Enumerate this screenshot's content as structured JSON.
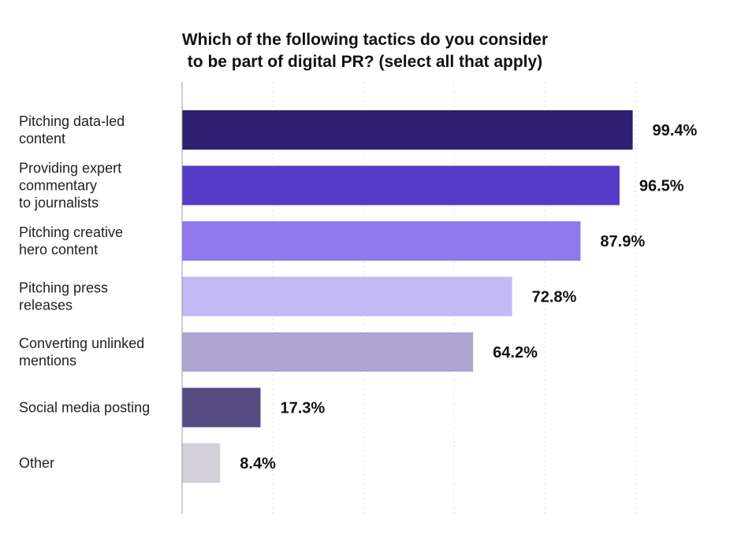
{
  "chart_data": {
    "type": "bar",
    "orientation": "horizontal",
    "title_lines": [
      "Which of the following tactics do you consider",
      "to be part of digital PR? (select all that apply)"
    ],
    "categories": [
      [
        "Pitching data-led",
        "content"
      ],
      [
        "Providing expert",
        "commentary",
        "to journalists"
      ],
      [
        "Pitching creative",
        "hero content"
      ],
      [
        "Pitching press",
        "releases"
      ],
      [
        "Converting unlinked",
        "mentions"
      ],
      [
        "Social media posting"
      ],
      [
        "Other"
      ]
    ],
    "values": [
      99.4,
      96.5,
      87.9,
      72.8,
      64.2,
      17.3,
      8.4
    ],
    "value_labels": [
      "99.4%",
      "96.5%",
      "87.9%",
      "72.8%",
      "64.2%",
      "17.3%",
      "8.4%"
    ],
    "colors": [
      "#2e1f72",
      "#563bc8",
      "#8f79ec",
      "#c3b9f3",
      "#aea5d2",
      "#564a82",
      "#d3d0dc"
    ],
    "xlim": [
      0,
      100
    ],
    "grid": true,
    "legend": "none"
  }
}
